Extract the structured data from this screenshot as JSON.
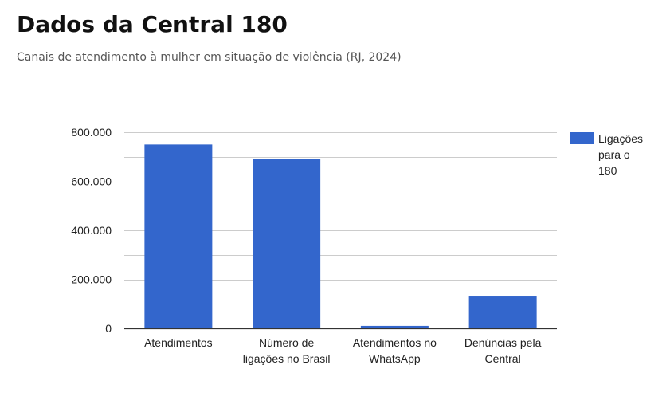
{
  "header": {
    "title": "Dados da Central 180",
    "subtitle": "Canais de atendimento à mulher em situação de violência (RJ, 2024)"
  },
  "chart_data": {
    "type": "bar",
    "categories": [
      [
        "Atendimentos"
      ],
      [
        "Número de",
        "ligações no Brasil"
      ],
      [
        "Atendimentos no",
        "WhatsApp"
      ],
      [
        "Denúncias pela",
        "Central"
      ]
    ],
    "series": [
      {
        "name": "Ligações para o 180",
        "legend_lines": [
          "Ligações",
          "para o",
          "180"
        ],
        "color": "#3366cc",
        "values": [
          750000,
          690000,
          10000,
          130000
        ]
      }
    ],
    "ylim": [
      0,
      800000
    ],
    "y_ticks": [
      0,
      200000,
      400000,
      600000,
      800000
    ],
    "y_tick_labels": [
      "0",
      "200.000",
      "400.000",
      "600.000",
      "800.000"
    ],
    "grid": true,
    "legend_position": "right",
    "xlabel": "",
    "ylabel": ""
  }
}
